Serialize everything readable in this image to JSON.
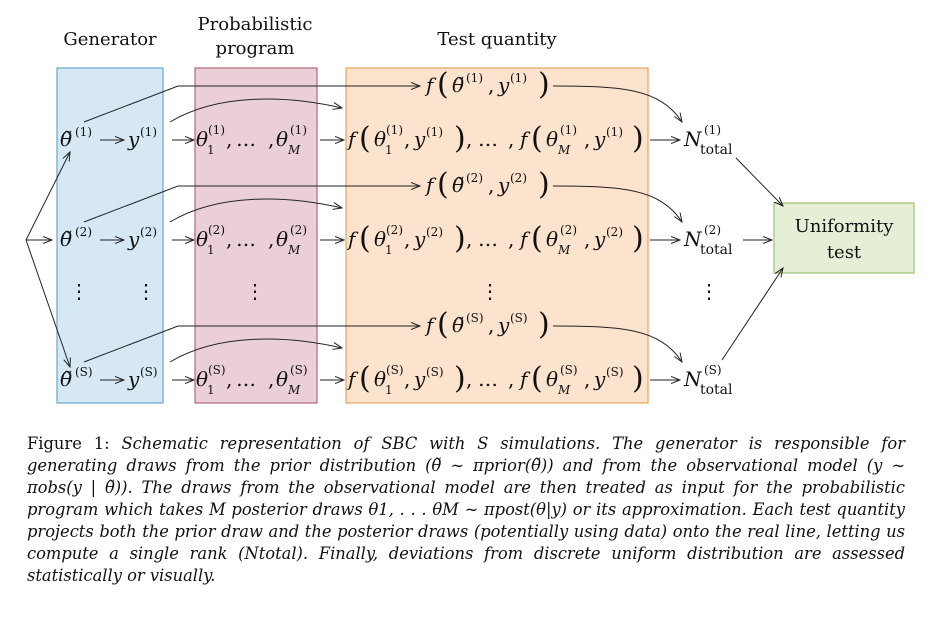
{
  "labels": {
    "generator": "Generator",
    "probabilistic_program_line1": "Probabilistic",
    "probabilistic_program_line2": "program",
    "test_quantity": "Test quantity",
    "uniformity_line1": "Uniformity",
    "uniformity_line2": "test"
  },
  "rows": [
    {
      "index": "(1)",
      "theta_tilde": "θ̃",
      "y": "y",
      "posterior": "θ",
      "M": "M",
      "f": "f",
      "N": "N",
      "total": "total"
    },
    {
      "index": "(2)",
      "theta_tilde": "θ̃",
      "y": "y",
      "posterior": "θ",
      "M": "M",
      "f": "f",
      "N": "N",
      "total": "total"
    },
    {
      "index": "(S)",
      "theta_tilde": "θ̃",
      "y": "y",
      "posterior": "θ",
      "M": "M",
      "f": "f",
      "N": "N",
      "total": "total"
    }
  ],
  "symbols": {
    "arrow": "→",
    "dots": "⋮",
    "ellipsis": "…",
    "comma": ","
  },
  "colors": {
    "generator_fill": "#d6e8f3",
    "generator_stroke": "#6aa5cf",
    "program_fill": "#ead0d6",
    "program_stroke": "#b06a78",
    "test_fill": "#fbe3cd",
    "test_stroke": "#e9a35c",
    "uniformity_fill": "#e5efd6",
    "uniformity_stroke": "#9dc079"
  },
  "caption": {
    "prefix": "Figure 1: ",
    "text": "Schematic representation of SBC with S simulations. The generator is responsible for generating draws from the prior distribution (θ̃ ∼ πprior(θ̃)) and from the observational model (y ∼ πobs(y | θ̃)). The draws from the observational model are then treated as input for the probabilistic program which takes M posterior draws θ1, . . . θM ∼ πpost(θ|y) or its approximation. Each test quantity projects both the prior draw and the posterior draws (potentially using data) onto the real line, letting us compute a single rank (Ntotal). Finally, deviations from discrete uniform distribution are assessed statistically or visually."
  }
}
